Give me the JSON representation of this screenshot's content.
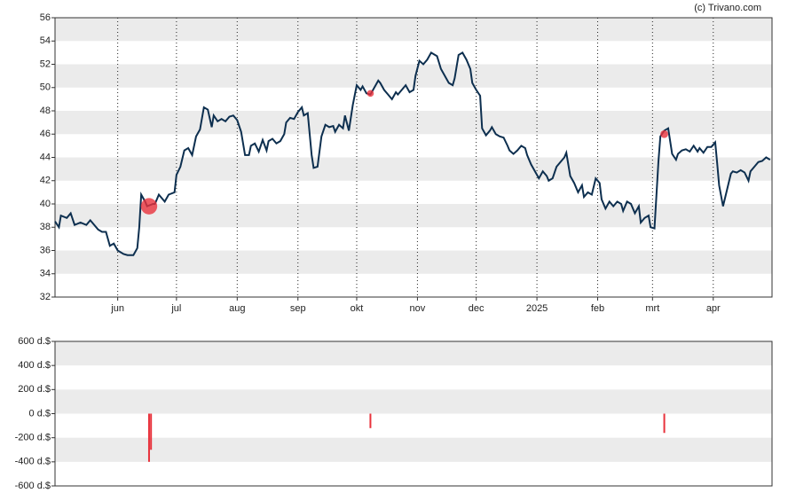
{
  "chart_data": [
    {
      "type": "line",
      "credit": "(c) Trivano.com",
      "color": "#0d2f4f",
      "x": [
        -32,
        -30,
        -29,
        -26,
        -24,
        -22,
        -19,
        -16,
        -14,
        -10,
        -8,
        -6,
        -4,
        -2,
        0,
        3,
        5,
        8,
        10,
        11,
        12,
        14,
        15,
        18,
        19,
        21,
        24,
        26,
        29,
        30,
        32,
        34,
        36,
        38,
        40,
        42,
        44,
        46,
        48,
        49,
        51,
        53,
        55,
        57,
        59,
        61,
        63,
        65,
        67,
        68,
        70,
        72,
        74,
        76,
        77,
        79,
        81,
        83,
        85,
        86,
        88,
        90,
        92,
        94,
        95,
        97,
        99,
        100,
        102,
        104,
        106,
        108,
        110,
        111,
        113,
        115,
        116,
        118,
        120,
        122,
        124,
        125,
        127,
        129,
        131,
        133,
        134,
        136,
        138,
        140,
        142,
        143,
        145,
        147,
        149,
        151,
        152,
        154,
        156,
        158,
        160,
        162,
        163,
        165,
        167,
        169,
        171,
        172,
        174,
        176,
        178,
        180,
        181,
        183,
        185,
        186,
        188,
        190,
        191,
        193,
        195,
        197,
        199,
        200,
        202,
        204,
        206,
        208,
        209,
        211,
        213,
        215,
        217,
        219,
        220,
        222,
        224,
        226,
        228,
        229,
        231,
        233,
        235,
        237,
        238,
        240,
        242,
        244,
        246,
        247,
        249,
        251,
        253,
        255,
        257,
        258,
        260,
        262,
        264,
        266,
        267,
        269,
        271,
        272,
        274,
        276,
        277,
        279,
        281,
        283,
        285,
        286,
        288,
        290,
        292,
        294,
        296,
        297,
        299,
        301,
        303,
        305,
        306,
        307,
        309,
        311,
        313,
        314,
        316,
        318,
        320,
        322,
        323,
        325,
        327,
        329,
        331,
        333
      ],
      "values": [
        38.5,
        38.0,
        39.0,
        38.8,
        39.2,
        38.2,
        38.4,
        38.2,
        38.6,
        37.8,
        37.6,
        37.6,
        36.4,
        36.6,
        36.0,
        35.7,
        35.6,
        35.6,
        36.2,
        38.0,
        40.8,
        40.2,
        39.8,
        40.0,
        40.0,
        40.8,
        40.2,
        40.8,
        41.0,
        42.5,
        43.2,
        44.6,
        44.8,
        44.2,
        45.8,
        46.4,
        48.3,
        48.1,
        46.6,
        47.6,
        47.1,
        47.3,
        47.1,
        47.5,
        47.6,
        47.2,
        46.2,
        44.2,
        44.2,
        45.0,
        45.2,
        44.5,
        45.5,
        44.6,
        45.4,
        45.6,
        45.2,
        45.4,
        46.0,
        47.0,
        47.4,
        47.3,
        47.9,
        48.3,
        47.6,
        47.8,
        44.2,
        43.1,
        43.2,
        45.8,
        46.8,
        46.6,
        46.7,
        46.2,
        46.8,
        46.5,
        47.6,
        46.3,
        48.5,
        50.2,
        49.8,
        50.1,
        49.5,
        49.4,
        50.0,
        50.6,
        50.4,
        49.8,
        49.4,
        49.0,
        49.6,
        49.4,
        49.8,
        50.2,
        49.6,
        49.8,
        51.0,
        52.3,
        52.0,
        52.4,
        53.0,
        52.8,
        52.7,
        51.6,
        51.0,
        50.4,
        50.2,
        50.8,
        52.8,
        53.0,
        52.4,
        51.6,
        50.4,
        49.8,
        49.3,
        46.5,
        45.9,
        46.3,
        46.6,
        46.0,
        45.8,
        45.7,
        45.0,
        44.6,
        44.3,
        44.6,
        45.0,
        44.8,
        44.2,
        43.4,
        42.8,
        42.2,
        42.8,
        42.4,
        42.0,
        42.2,
        43.2,
        43.6,
        44.0,
        44.4,
        42.4,
        41.8,
        41.0,
        41.6,
        40.6,
        41.0,
        40.8,
        42.2,
        41.8,
        40.4,
        39.6,
        40.2,
        39.8,
        40.2,
        40.0,
        39.4,
        40.2,
        40.0,
        39.2,
        39.8,
        38.4,
        38.8,
        39.0,
        38.0,
        37.9,
        43.6,
        45.8,
        46.3,
        46.5,
        44.3,
        43.8,
        44.3,
        44.6,
        44.7,
        44.5,
        45.0,
        44.5,
        44.8,
        44.4,
        44.9,
        44.9,
        45.3,
        43.5,
        41.6,
        39.8,
        41.2,
        42.6,
        42.8,
        42.7,
        42.9,
        42.7,
        42.0,
        42.8,
        43.2,
        43.6,
        43.7,
        44.0,
        43.8
      ],
      "markers": {
        "x": [
          16,
          129,
          279
        ],
        "values": [
          39.8,
          49.5,
          46.0
        ],
        "color": "#e8323c"
      },
      "xlim": [
        -32,
        334
      ],
      "xticks": [
        {
          "value": 0,
          "label": "jun"
        },
        {
          "value": 30,
          "label": "jul"
        },
        {
          "value": 61,
          "label": "aug"
        },
        {
          "value": 92,
          "label": "sep"
        },
        {
          "value": 122,
          "label": "okt"
        },
        {
          "value": 153,
          "label": "nov"
        },
        {
          "value": 183,
          "label": "dec"
        },
        {
          "value": 214,
          "label": "2025"
        },
        {
          "value": 245,
          "label": "feb"
        },
        {
          "value": 273,
          "label": "mrt"
        },
        {
          "value": 304,
          "label": "apr"
        }
      ],
      "ylim": [
        32,
        56
      ],
      "yticks": [
        32,
        34,
        36,
        38,
        40,
        42,
        44,
        46,
        48,
        50,
        52,
        54,
        56
      ]
    },
    {
      "type": "bar",
      "color": "#e8323c",
      "x": [
        16,
        17,
        129,
        279
      ],
      "values": [
        -400,
        -300,
        -120,
        -160
      ],
      "xlim": [
        -32,
        334
      ],
      "ylim": [
        -600,
        600
      ],
      "yticks": [
        {
          "value": -600,
          "label": "-600 d.$"
        },
        {
          "value": -400,
          "label": "-400 d.$"
        },
        {
          "value": -200,
          "label": "-200 d.$"
        },
        {
          "value": 0,
          "label": "0 d.$"
        },
        {
          "value": 200,
          "label": "200 d.$"
        },
        {
          "value": 400,
          "label": "400 d.$"
        },
        {
          "value": 600,
          "label": "600 d.$"
        }
      ]
    }
  ]
}
